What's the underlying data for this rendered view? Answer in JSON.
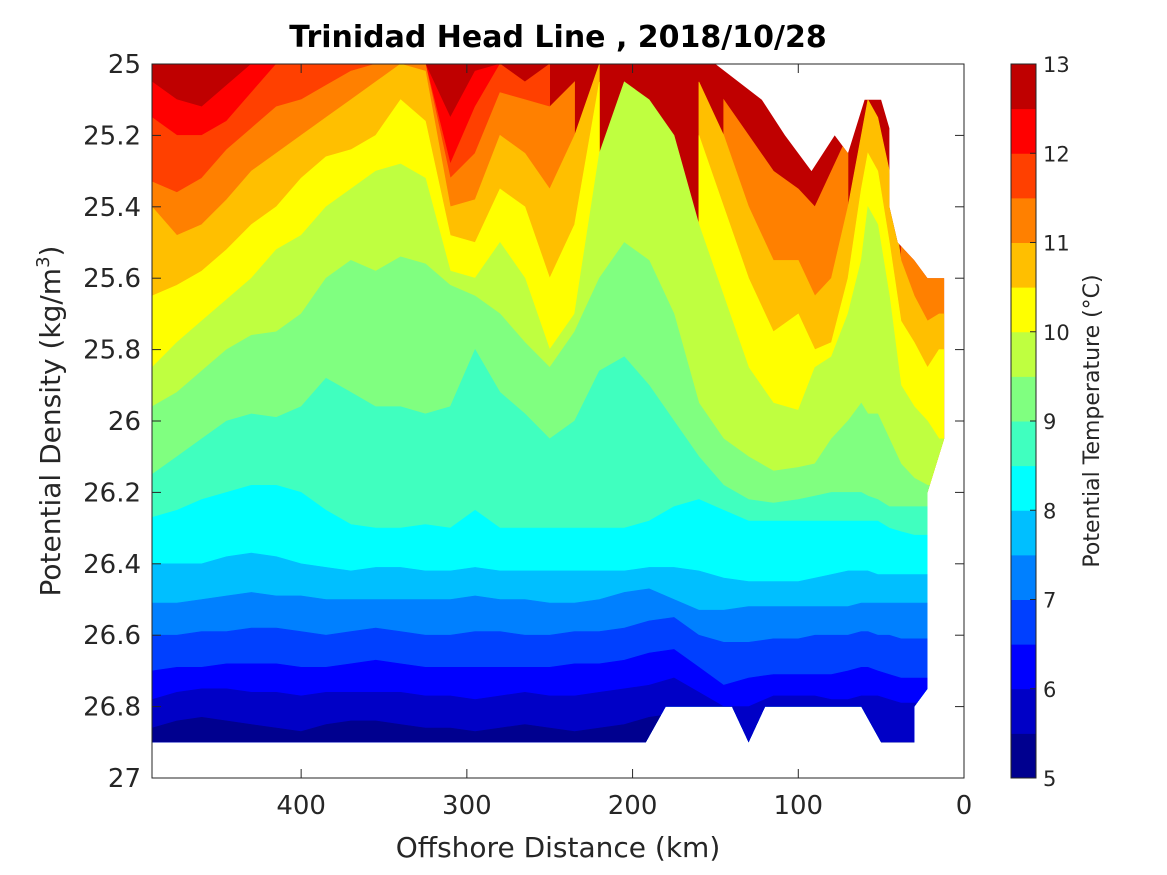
{
  "chart_data": {
    "type": "heatmap",
    "subtype": "filled-contour",
    "title": "Trinidad Head Line , 2018/10/28",
    "xlabel": "Offshore Distance (km)",
    "ylabel": "Potential Density (kg/m",
    "ylabel_sup": "3",
    "ylabel_end": ")",
    "xlim": [
      490,
      0
    ],
    "x_reversed": true,
    "ylim": [
      25,
      27
    ],
    "y_reversed": true,
    "x_ticks": [
      400,
      300,
      200,
      100,
      0
    ],
    "x_tick_labels": [
      "400",
      "300",
      "200",
      "100",
      "0"
    ],
    "y_ticks": [
      25,
      25.2,
      25.4,
      25.6,
      25.8,
      26,
      26.2,
      26.4,
      26.6,
      26.8,
      27
    ],
    "y_tick_labels": [
      "25",
      "25.2",
      "25.4",
      "25.6",
      "25.8",
      "26",
      "26.2",
      "26.4",
      "26.6",
      "26.8",
      "27"
    ],
    "colorbar": {
      "label": "Potential Temperature (°C)",
      "range": [
        5,
        13
      ],
      "ticks": [
        5,
        6,
        7,
        8,
        9,
        10,
        11,
        12,
        13
      ],
      "tick_labels": [
        "5",
        "6",
        "7",
        "8",
        "9",
        "10",
        "11",
        "12",
        "13"
      ],
      "levels": [
        5,
        5.5,
        6,
        6.5,
        7,
        7.5,
        8,
        8.5,
        9,
        9.5,
        10,
        10.5,
        11,
        11.5,
        12,
        12.5,
        13
      ],
      "colors": [
        "#00008f",
        "#0000c6",
        "#0000ff",
        "#0040ff",
        "#0080ff",
        "#00bfff",
        "#00ffff",
        "#40ffbf",
        "#80ff80",
        "#bfff40",
        "#ffff00",
        "#ffbf00",
        "#ff8000",
        "#ff4000",
        "#ff0000",
        "#bf0000"
      ]
    },
    "x_stations": [
      490,
      475,
      460,
      445,
      430,
      415,
      400,
      385,
      370,
      355,
      340,
      325,
      310,
      295,
      280,
      265,
      250,
      235,
      220,
      205,
      190,
      175,
      160,
      145,
      130,
      115,
      100,
      90,
      80,
      70,
      62,
      58,
      52,
      45,
      38,
      30,
      22,
      15,
      10
    ],
    "boundaries": [
      {
        "temp": 12.5,
        "depth": [
          25.05,
          25.1,
          25.12,
          25.06,
          25.0,
          25.0,
          25.0,
          25.0,
          25.0,
          25.0,
          25.0,
          25.0,
          25.15,
          25.02,
          25.0,
          null,
          null,
          null,
          null,
          null,
          null,
          null,
          null,
          null,
          null,
          null,
          null,
          null,
          null,
          null,
          null,
          null,
          null,
          null,
          null,
          null,
          null,
          null,
          null
        ]
      },
      {
        "temp": 12.0,
        "depth": [
          25.15,
          25.2,
          25.2,
          25.16,
          25.08,
          25.0,
          25.0,
          25.0,
          25.0,
          25.0,
          25.0,
          25.0,
          25.28,
          25.12,
          25.0,
          25.05,
          25.0,
          null,
          null,
          null,
          null,
          null,
          null,
          null,
          null,
          null,
          null,
          null,
          null,
          null,
          null,
          null,
          null,
          null,
          null,
          null,
          null,
          null,
          null
        ]
      },
      {
        "temp": 11.5,
        "depth": [
          25.33,
          25.36,
          25.32,
          25.24,
          25.18,
          25.12,
          25.1,
          25.06,
          25.02,
          25.0,
          25.0,
          25.0,
          25.32,
          25.25,
          25.08,
          25.1,
          25.12,
          25.05,
          null,
          null,
          null,
          null,
          null,
          25.1,
          25.2,
          25.3,
          25.35,
          25.4,
          25.3,
          25.2,
          null,
          null,
          null,
          null,
          25.45,
          25.55,
          25.6,
          25.6,
          25.6
        ]
      },
      {
        "temp": 11.0,
        "depth": [
          25.4,
          25.48,
          25.45,
          25.38,
          25.3,
          25.25,
          25.2,
          25.15,
          25.1,
          25.05,
          25.0,
          25.02,
          25.4,
          25.38,
          25.2,
          25.25,
          25.35,
          25.2,
          25.0,
          null,
          null,
          null,
          25.05,
          25.2,
          25.4,
          25.55,
          25.55,
          25.65,
          25.6,
          25.4,
          25.2,
          25.1,
          25.15,
          25.3,
          25.55,
          25.65,
          25.72,
          25.7,
          25.7
        ]
      },
      {
        "temp": 10.5,
        "depth": [
          25.65,
          25.62,
          25.58,
          25.52,
          25.45,
          25.4,
          25.32,
          25.26,
          25.24,
          25.2,
          25.1,
          25.16,
          25.48,
          25.5,
          25.35,
          25.4,
          25.6,
          25.45,
          25.05,
          null,
          null,
          null,
          25.2,
          25.4,
          25.6,
          25.75,
          25.7,
          25.8,
          25.78,
          25.6,
          25.35,
          25.25,
          25.3,
          25.5,
          25.72,
          25.78,
          25.85,
          25.8,
          25.8
        ]
      },
      {
        "temp": 10.0,
        "depth": [
          25.85,
          25.78,
          25.72,
          25.66,
          25.6,
          25.52,
          25.48,
          25.4,
          25.35,
          25.3,
          25.28,
          25.32,
          25.58,
          25.6,
          25.5,
          25.6,
          25.8,
          25.7,
          25.25,
          25.05,
          25.1,
          25.2,
          25.45,
          25.65,
          25.85,
          25.95,
          25.97,
          25.85,
          25.82,
          25.7,
          25.55,
          25.4,
          25.45,
          25.65,
          25.9,
          25.96,
          26.0,
          26.05,
          26.05
        ]
      },
      {
        "temp": 9.5,
        "depth": [
          25.96,
          25.92,
          25.86,
          25.8,
          25.76,
          25.75,
          25.7,
          25.6,
          25.55,
          25.58,
          25.54,
          25.56,
          25.62,
          25.65,
          25.7,
          25.78,
          25.85,
          25.75,
          25.6,
          25.5,
          25.55,
          25.7,
          25.95,
          26.05,
          26.1,
          26.14,
          26.13,
          26.12,
          26.05,
          26.0,
          25.95,
          25.98,
          25.98,
          26.05,
          26.12,
          26.16,
          26.18,
          26.18,
          26.18
        ]
      },
      {
        "temp": 9.0,
        "depth": [
          26.15,
          26.1,
          26.05,
          26.0,
          25.98,
          25.99,
          25.96,
          25.88,
          25.92,
          25.96,
          25.96,
          25.98,
          25.96,
          25.8,
          25.92,
          25.98,
          26.05,
          26.0,
          25.86,
          25.82,
          25.9,
          26.0,
          26.1,
          26.18,
          26.22,
          26.23,
          26.22,
          26.21,
          26.2,
          26.2,
          26.2,
          26.21,
          26.22,
          26.24,
          26.24,
          26.24,
          26.24,
          26.24,
          26.24
        ]
      },
      {
        "temp": 8.5,
        "depth": [
          26.27,
          26.25,
          26.22,
          26.2,
          26.18,
          26.18,
          26.2,
          26.25,
          26.29,
          26.3,
          26.3,
          26.29,
          26.3,
          26.25,
          26.3,
          26.3,
          26.3,
          26.3,
          26.3,
          26.3,
          26.28,
          26.24,
          26.22,
          26.25,
          26.28,
          26.28,
          26.28,
          26.28,
          26.28,
          26.28,
          26.28,
          26.28,
          26.28,
          26.3,
          26.31,
          26.32,
          26.32,
          26.32,
          26.32
        ]
      },
      {
        "temp": 8.0,
        "depth": [
          26.4,
          26.4,
          26.4,
          26.38,
          26.37,
          26.38,
          26.4,
          26.41,
          26.42,
          26.41,
          26.41,
          26.42,
          26.42,
          26.41,
          26.42,
          26.42,
          26.42,
          26.42,
          26.42,
          26.42,
          26.41,
          26.41,
          26.42,
          26.44,
          26.45,
          26.45,
          26.45,
          26.44,
          26.43,
          26.42,
          26.42,
          26.42,
          26.43,
          26.43,
          26.43,
          26.43,
          26.43,
          26.43,
          26.43
        ]
      },
      {
        "temp": 7.5,
        "depth": [
          26.51,
          26.51,
          26.5,
          26.49,
          26.48,
          26.49,
          26.49,
          26.5,
          26.5,
          26.5,
          26.5,
          26.5,
          26.5,
          26.49,
          26.5,
          26.5,
          26.51,
          26.51,
          26.5,
          26.48,
          26.47,
          26.5,
          26.53,
          26.53,
          26.52,
          26.52,
          26.52,
          26.52,
          26.52,
          26.52,
          26.51,
          26.51,
          26.51,
          26.51,
          26.51,
          26.51,
          26.51,
          26.51,
          26.51
        ]
      },
      {
        "temp": 7.0,
        "depth": [
          26.6,
          26.6,
          26.59,
          26.59,
          26.58,
          26.58,
          26.59,
          26.6,
          26.59,
          26.58,
          26.59,
          26.6,
          26.6,
          26.59,
          26.59,
          26.6,
          26.6,
          26.59,
          26.59,
          26.58,
          26.56,
          26.55,
          26.6,
          26.62,
          26.62,
          26.61,
          26.61,
          26.6,
          26.6,
          26.6,
          26.59,
          26.59,
          26.6,
          26.6,
          26.61,
          26.61,
          26.61,
          26.61,
          26.61
        ]
      },
      {
        "temp": 6.5,
        "depth": [
          26.7,
          26.69,
          26.69,
          26.68,
          26.68,
          26.68,
          26.69,
          26.69,
          26.68,
          26.67,
          26.68,
          26.69,
          26.69,
          26.69,
          26.69,
          26.69,
          26.69,
          26.68,
          26.68,
          26.67,
          26.65,
          26.64,
          26.69,
          26.74,
          26.72,
          26.71,
          26.71,
          26.71,
          26.71,
          26.7,
          26.69,
          26.69,
          26.7,
          26.71,
          26.72,
          26.72,
          26.72,
          26.72,
          26.72
        ]
      },
      {
        "temp": 6.0,
        "depth": [
          26.78,
          26.76,
          26.75,
          26.75,
          26.76,
          26.76,
          26.77,
          26.76,
          26.76,
          26.76,
          26.76,
          26.77,
          26.77,
          26.78,
          26.77,
          26.76,
          26.77,
          26.77,
          26.76,
          26.75,
          26.74,
          26.72,
          26.76,
          26.8,
          26.8,
          26.77,
          26.77,
          26.77,
          26.78,
          26.78,
          26.77,
          26.77,
          26.77,
          26.78,
          26.79,
          26.79,
          26.79,
          26.79,
          26.79
        ]
      },
      {
        "temp": 5.5,
        "depth": [
          26.86,
          26.84,
          26.83,
          26.84,
          26.85,
          26.86,
          26.87,
          26.85,
          26.84,
          26.84,
          26.85,
          26.86,
          26.86,
          26.87,
          26.86,
          26.85,
          26.86,
          26.87,
          26.86,
          26.85,
          26.83,
          26.82,
          26.85,
          26.9,
          26.9,
          26.9,
          26.9,
          26.9,
          26.9,
          26.9,
          26.9,
          26.9,
          26.9,
          26.9,
          26.9,
          26.9,
          26.9,
          26.9,
          26.9
        ]
      }
    ],
    "top_edge": [
      [
        490,
        25.0
      ],
      [
        180,
        25.0
      ],
      [
        165,
        25.0
      ],
      [
        150,
        25.0
      ],
      [
        122,
        25.1
      ],
      [
        108,
        25.2
      ],
      [
        92,
        25.3
      ],
      [
        78,
        25.2
      ],
      [
        70,
        25.25
      ],
      [
        60,
        25.1
      ],
      [
        50,
        25.1
      ],
      [
        45,
        25.18
      ],
      [
        45,
        25.4
      ],
      [
        40,
        25.5
      ],
      [
        30,
        25.55
      ],
      [
        22,
        25.6
      ],
      [
        12,
        25.6
      ],
      [
        12,
        26.05
      ],
      [
        22,
        26.2
      ],
      [
        22,
        26.75
      ],
      [
        30,
        26.8
      ],
      [
        30,
        26.9
      ]
    ],
    "bottom_edge": [
      [
        30,
        26.9
      ],
      [
        50,
        26.9
      ],
      [
        62,
        26.8
      ],
      [
        120,
        26.8
      ],
      [
        130,
        26.9
      ],
      [
        140,
        26.8
      ],
      [
        170,
        26.8
      ],
      [
        180,
        26.8
      ],
      [
        192,
        26.9
      ],
      [
        490,
        26.9
      ]
    ]
  }
}
